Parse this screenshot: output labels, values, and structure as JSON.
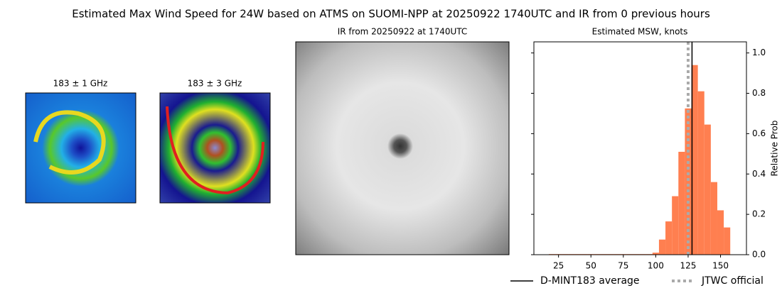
{
  "title": "Estimated Max Wind Speed for 24W based on ATMS on SUOMI-NPP at 20250922 1740UTC and IR from 0 previous hours",
  "panels": [
    {
      "title": "183 ± 1 GHz"
    },
    {
      "title": "183 ± 3 GHz"
    },
    {
      "title": "IR from 20250922 at 1740UTC"
    }
  ],
  "chart_data": {
    "type": "histogram",
    "title": "Estimated MSW, knots",
    "y_label": "Relative Prob",
    "color": "#ff7f50",
    "bins": [
      17.5,
      22.5,
      27.5,
      32.5,
      37.5,
      42.5,
      47.5,
      52.5,
      57.5,
      62.5,
      67.5,
      72.5,
      77.5,
      82.5,
      87.5,
      92.5,
      97.5,
      102.5,
      107.5,
      112.5,
      117.5,
      122.5,
      127.5,
      132.5,
      137.5,
      142.5,
      147.5,
      152.5,
      157.5
    ],
    "values": [
      0.003,
      0.003,
      0.003,
      0.003,
      0.003,
      0.003,
      0.003,
      0.003,
      0.003,
      0.003,
      0.003,
      0.003,
      0.003,
      0.003,
      0.003,
      0.003,
      0.01,
      0.075,
      0.165,
      0.29,
      0.51,
      0.725,
      0.94,
      0.81,
      0.645,
      0.36,
      0.22,
      0.135
    ],
    "xlim": [
      6,
      170
    ],
    "xticks": [
      25,
      50,
      75,
      100,
      125,
      150
    ],
    "ylim": [
      0,
      1.055
    ],
    "yticks": [
      {
        "value": 0,
        "label": "0.0"
      },
      {
        "value": 0.2,
        "label": "0.2"
      },
      {
        "value": 0.4,
        "label": "0.4"
      },
      {
        "value": 0.6,
        "label": "0.6"
      },
      {
        "value": 0.8,
        "label": "0.8"
      },
      {
        "value": 1,
        "label": "1.0"
      }
    ],
    "lines": [
      {
        "name": "D-MINT183 average",
        "value": 128,
        "color": "#000000",
        "style": "solid"
      },
      {
        "name": "JTWC official",
        "value": 125,
        "color": "#aaaaaa",
        "style": "dotted"
      }
    ]
  }
}
